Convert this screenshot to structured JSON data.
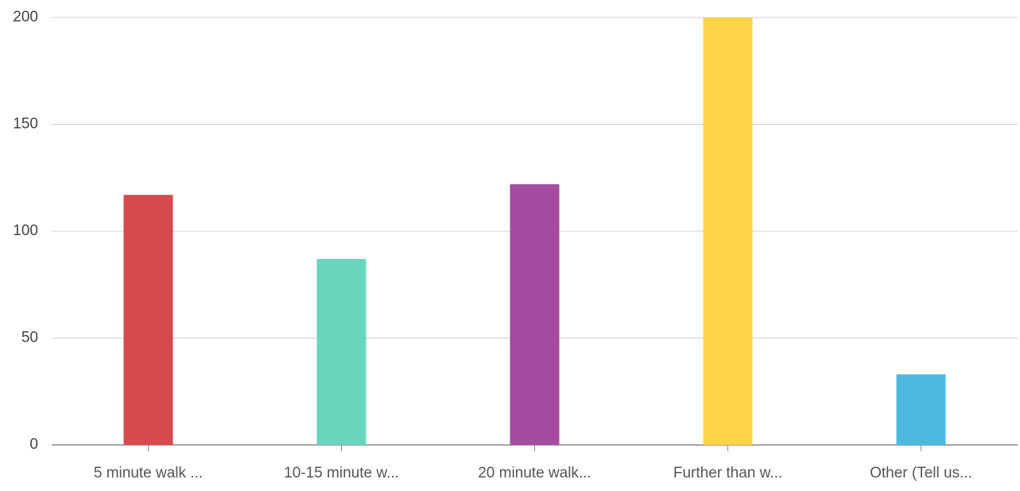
{
  "chart_data": {
    "type": "bar",
    "categories": [
      "5 minute walk ...",
      "10-15 minute w...",
      "20 minute walk...",
      "Further than w...",
      "Other (Tell us..."
    ],
    "values": [
      117,
      87,
      122,
      200,
      33
    ],
    "colors": [
      "#d64a4d",
      "#68d6bd",
      "#a44ca0",
      "#fed447",
      "#4cb8e0"
    ],
    "ylim": [
      0,
      200
    ],
    "yticks": [
      0,
      50,
      100,
      150,
      200
    ],
    "grid": true
  }
}
